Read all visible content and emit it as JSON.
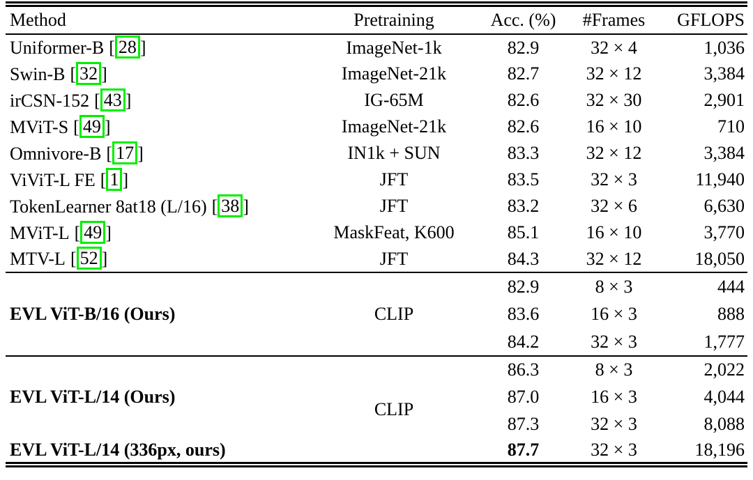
{
  "table": {
    "bracket_open": "[",
    "bracket_close": "]",
    "citation_border_color": "#00ee00",
    "text_color": "#000000",
    "background_color": "#ffffff",
    "headers": [
      "Method",
      "Pretraining",
      "Acc. (%)",
      "#Frames",
      "GFLOPS"
    ],
    "sections": [
      {
        "name": "baselines",
        "rows": [
          {
            "method": "Uniformer-B",
            "cite": "28",
            "pretraining": "ImageNet-1k",
            "acc": "82.9",
            "frames": "32 × 4",
            "gflops": "1,036"
          },
          {
            "method": "Swin-B",
            "cite": "32",
            "pretraining": "ImageNet-21k",
            "acc": "82.7",
            "frames": "32 × 12",
            "gflops": "3,384"
          },
          {
            "method": "irCSN-152",
            "cite": "43",
            "pretraining": "IG-65M",
            "acc": "82.6",
            "frames": "32 × 30",
            "gflops": "2,901"
          },
          {
            "method": "MViT-S",
            "cite": "49",
            "pretraining": "ImageNet-21k",
            "acc": "82.6",
            "frames": "16 × 10",
            "gflops": "710"
          },
          {
            "method": "Omnivore-B",
            "cite": "17",
            "pretraining": "IN1k + SUN",
            "acc": "83.3",
            "frames": "32 × 12",
            "gflops": "3,384"
          },
          {
            "method": "ViViT-L FE",
            "cite": "1",
            "pretraining": "JFT",
            "acc": "83.5",
            "frames": "32 × 3",
            "gflops": "11,940"
          },
          {
            "method": "TokenLearner 8at18 (L/16)",
            "cite": "38",
            "pretraining": "JFT",
            "acc": "83.2",
            "frames": "32 × 6",
            "gflops": "6,630"
          },
          {
            "method": "MViT-L",
            "cite": "49",
            "pretraining": "MaskFeat, K600",
            "acc": "85.1",
            "frames": "16 × 10",
            "gflops": "3,770"
          },
          {
            "method": "MTV-L",
            "cite": "52",
            "pretraining": "JFT",
            "acc": "84.3",
            "frames": "32 × 12",
            "gflops": "18,050"
          }
        ]
      },
      {
        "name": "evl-vit-b16",
        "method": "EVL ViT-B/16 (Ours)",
        "pretraining": "CLIP",
        "rows": [
          {
            "acc": "82.9",
            "frames": "8 × 3",
            "gflops": "444"
          },
          {
            "acc": "83.6",
            "frames": "16 × 3",
            "gflops": "888"
          },
          {
            "acc": "84.2",
            "frames": "32 × 3",
            "gflops": "1,777"
          }
        ]
      },
      {
        "name": "evl-vit-l14",
        "method": "EVL ViT-L/14 (Ours)",
        "method_336": "EVL ViT-L/14 (336px, ours)",
        "pretraining": "CLIP",
        "rows": [
          {
            "acc": "86.3",
            "frames": "8 × 3",
            "gflops": "2,022"
          },
          {
            "acc": "87.0",
            "frames": "16 × 3",
            "gflops": "4,044"
          },
          {
            "acc": "87.3",
            "frames": "32 × 3",
            "gflops": "8,088"
          },
          {
            "acc": "87.7",
            "frames": "32 × 3",
            "gflops": "18,196"
          }
        ]
      }
    ]
  }
}
